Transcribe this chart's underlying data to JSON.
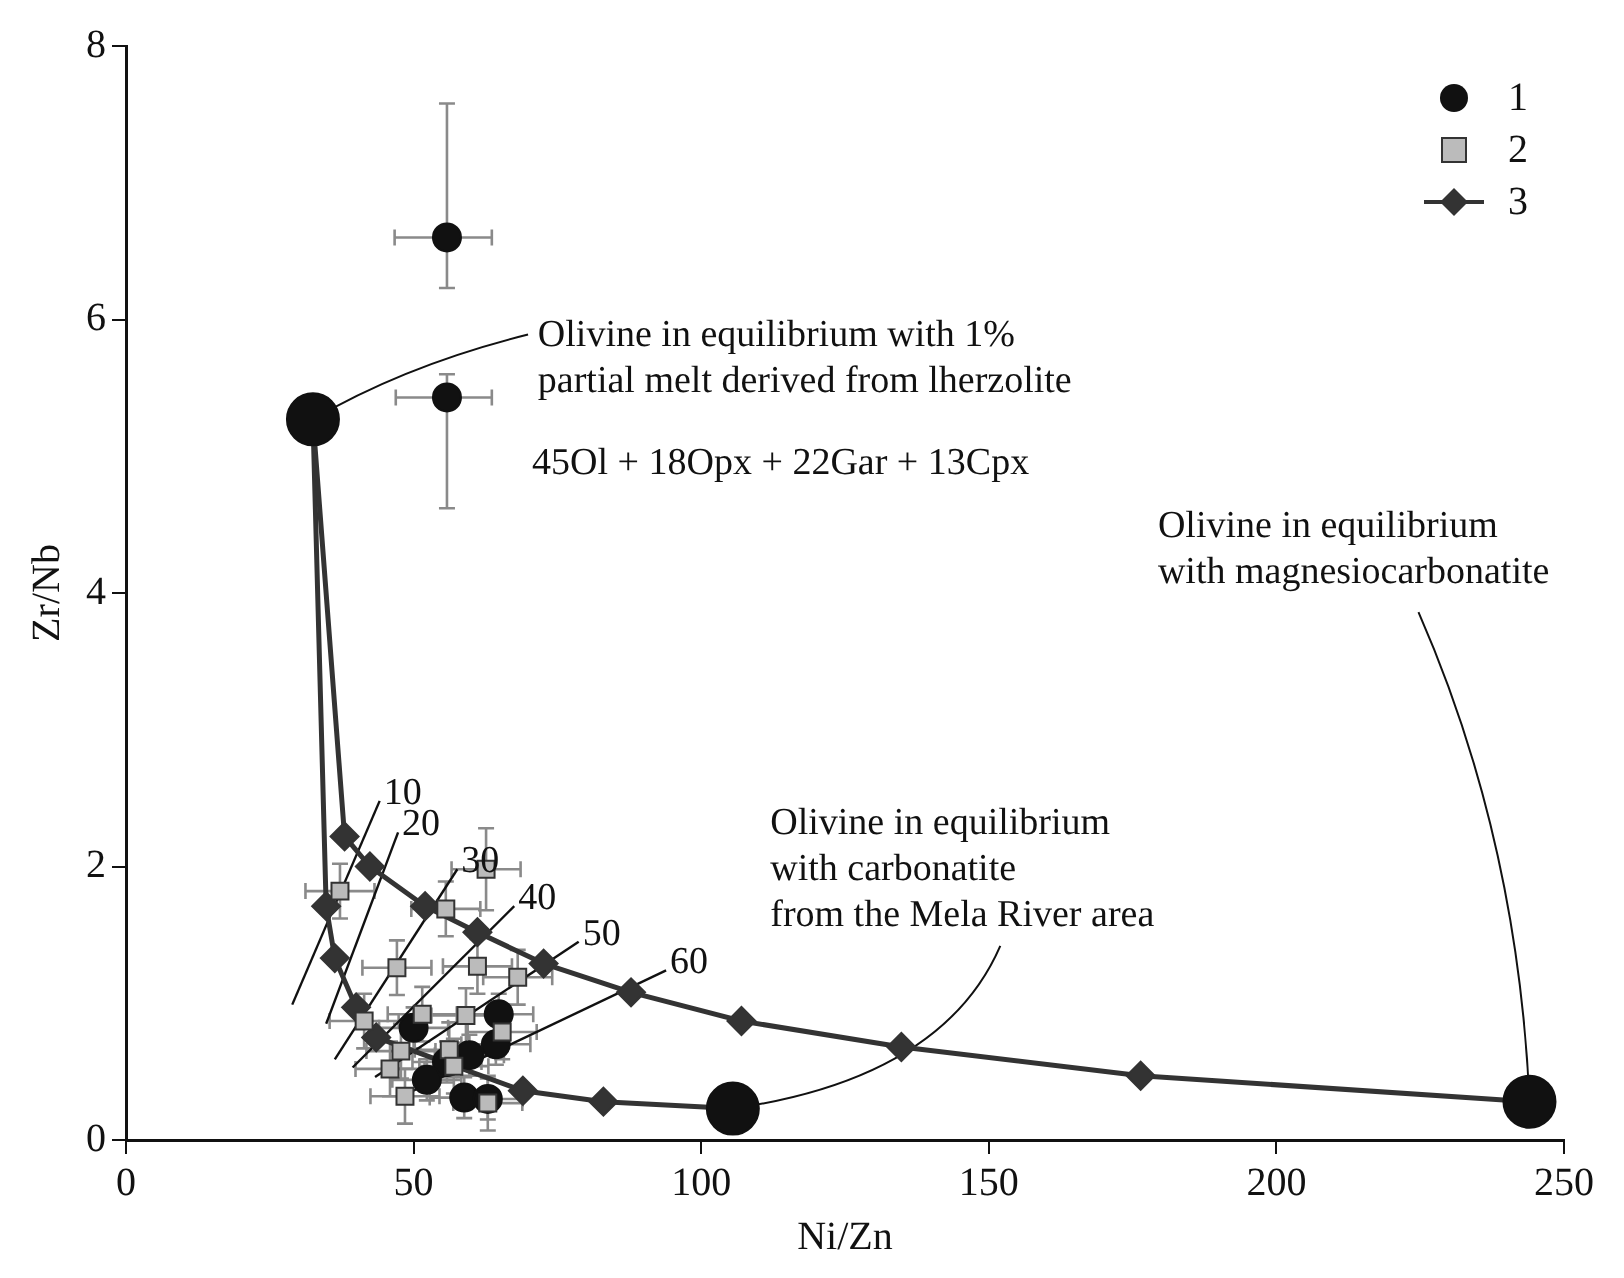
{
  "chart_data": {
    "type": "scatter",
    "xlabel": "Ni/Zn",
    "ylabel": "Zr/Nb",
    "xlim": [
      0,
      250
    ],
    "xticks": [
      0,
      50,
      100,
      150,
      200,
      250
    ],
    "ylim": [
      0,
      8
    ],
    "yticks": [
      0,
      2,
      4,
      6,
      8
    ],
    "legend": "top right",
    "series": [
      {
        "name": "1",
        "type": "scatter",
        "marker": "circle",
        "color": "#111111",
        "x": [
          55.8,
          55.8,
          50.0,
          64.8,
          64.3,
          59.7,
          55.8,
          52.3,
          58.8,
          62.9
        ],
        "values": [
          6.6,
          5.43,
          0.82,
          0.92,
          0.7,
          0.62,
          0.57,
          0.44,
          0.31,
          0.3
        ],
        "errors": [
          [
            6.23,
            7.58
          ],
          [
            4.62,
            5.6
          ],
          0.15,
          0.15,
          0.15,
          0.15,
          0.15,
          0.15,
          0.15,
          0.15
        ],
        "xerrors": [
          [
            46.7,
            63.6
          ],
          [
            46.9,
            63.6
          ],
          6,
          6,
          6,
          6,
          6,
          6,
          6,
          6
        ]
      },
      {
        "name": "2",
        "type": "scatter",
        "marker": "square",
        "color": "#bbbbbb",
        "x": [
          37.2,
          62.6,
          55.6,
          47.1,
          61.1,
          68.1,
          41.4,
          51.5,
          59.1,
          65.4,
          47.8,
          56.2,
          45.9,
          57.0,
          48.5,
          62.9
        ],
        "values": [
          1.82,
          1.98,
          1.69,
          1.26,
          1.27,
          1.19,
          0.87,
          0.92,
          0.91,
          0.79,
          0.65,
          0.66,
          0.52,
          0.54,
          0.32,
          0.27
        ],
        "errors": [
          0.2,
          0.3,
          0.2,
          0.2,
          0.2,
          0.2,
          0.2,
          0.2,
          0.2,
          0.2,
          0.2,
          0.2,
          0.2,
          0.2,
          0.2,
          0.2
        ],
        "xerrors": [
          6,
          6,
          6,
          6,
          6,
          6,
          6,
          6,
          6,
          6,
          6,
          6,
          6,
          6,
          6,
          6
        ]
      },
      {
        "name": "3",
        "type": "line",
        "marker": "diamond",
        "color": "#333333",
        "x": [
          32.5,
          38.0,
          42.4,
          52.0,
          61.1,
          72.6,
          87.8,
          107.0,
          134.8,
          176.4,
          244
        ],
        "values": [
          5.27,
          2.22,
          2.0,
          1.71,
          1.52,
          1.29,
          1.08,
          0.87,
          0.68,
          0.47,
          0.28
        ]
      },
      {
        "type": "line",
        "marker": "diamond",
        "color": "#333333",
        "x": [
          32.5,
          34.8,
          36.3,
          40.0,
          43.5,
          69.0,
          83.0,
          105.5
        ],
        "values": [
          5.27,
          1.71,
          1.33,
          0.97,
          0.75,
          0.36,
          0.28,
          0.23
        ]
      },
      {
        "type": "scatter",
        "marker": "circle",
        "color": "#111111",
        "x": [
          32.5,
          105.5,
          244
        ],
        "values": [
          5.27,
          0.23,
          0.28
        ]
      },
      {
        "type": "line",
        "marker": "none",
        "color": "#111111",
        "x": [
          28.9,
          44.1
        ],
        "values": [
          0.99,
          2.48
        ]
      },
      {
        "type": "line",
        "marker": "none",
        "color": "#111111",
        "x": [
          34.8,
          47.3
        ],
        "values": [
          0.85,
          2.25
        ]
      },
      {
        "type": "line",
        "marker": "none",
        "color": "#111111",
        "x": [
          36.3,
          57.6
        ],
        "values": [
          0.59,
          1.98
        ]
      },
      {
        "type": "line",
        "marker": "none",
        "color": "#111111",
        "x": [
          39.4,
          67.5
        ],
        "values": [
          0.53,
          1.71
        ]
      },
      {
        "type": "line",
        "marker": "none",
        "color": "#111111",
        "x": [
          43.3,
          78.7
        ],
        "values": [
          0.46,
          1.45
        ]
      },
      {
        "type": "line",
        "marker": "none",
        "color": "#111111",
        "x": [
          49.4,
          93.9
        ],
        "values": [
          0.35,
          1.24
        ]
      }
    ],
    "annotations": [
      {
        "text": "Olivine in equilibrium with 1%\npartial melt derived from lherzolite",
        "x": 32.5,
        "y": 5.27
      },
      "45Ol + 18Opx + 22Gar + 13Cpx",
      {
        "text": "Olivine in equilibrium\nwith magnesiocarbonatite",
        "x": 244,
        "y": 0.28
      },
      {
        "text": "Olivine in equilibrium\nwith carbonatite\nfrom the Mela River area",
        "x": 105.5,
        "y": 0.23
      },
      {
        "text": "10",
        "x": 44.1,
        "y": 2.48
      },
      {
        "text": "20",
        "x": 47.3,
        "y": 2.25
      },
      {
        "text": "30",
        "x": 57.6,
        "y": 1.98
      },
      {
        "text": "40",
        "x": 67.5,
        "y": 1.71
      },
      {
        "text": "50",
        "x": 78.7,
        "y": 1.45
      },
      {
        "text": "60",
        "x": 93.9,
        "y": 1.24
      }
    ]
  }
}
